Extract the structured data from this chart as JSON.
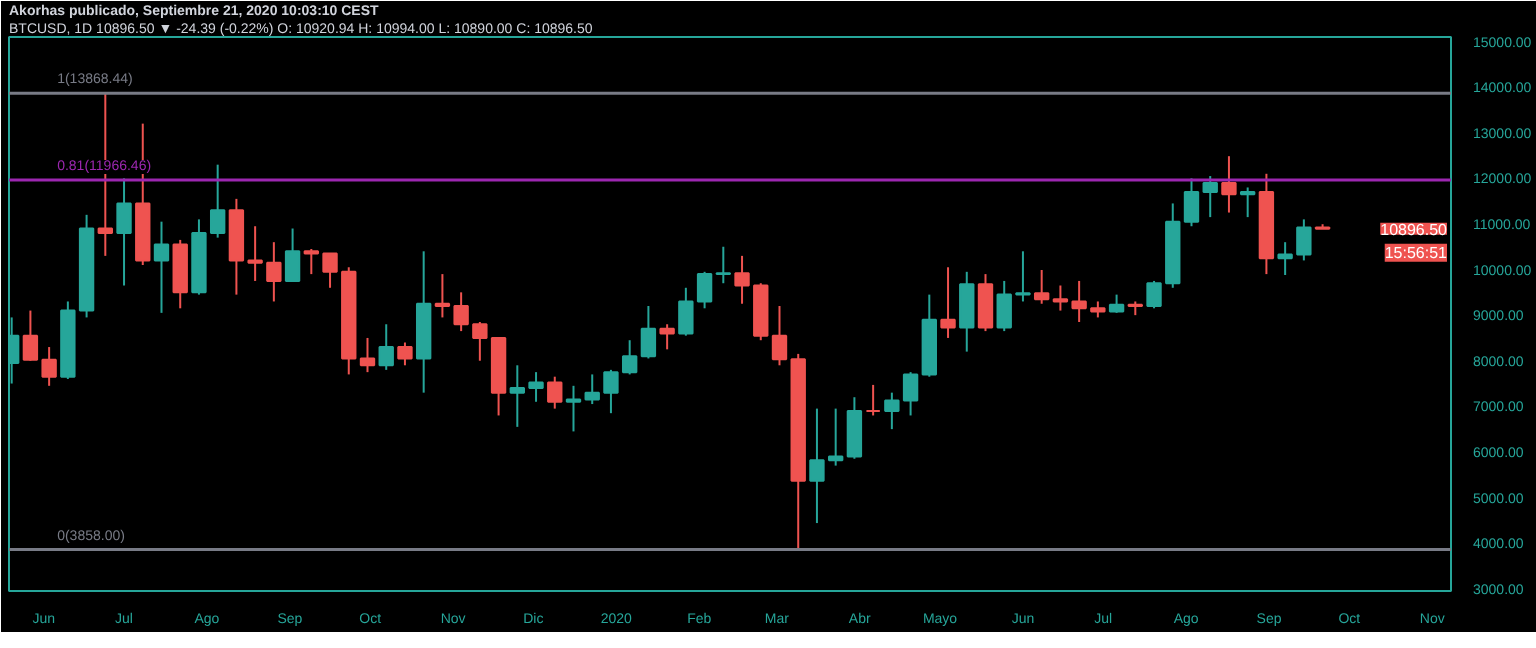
{
  "chart_data": {
    "type": "candlestick",
    "title": "Akorhas publicado, Septiembre 21, 2020 10:03:10 CEST",
    "subtitle": "BTCUSD, 1D 10896.50 ▼ -24.39 (-0.22%) O: 10920.94 H: 10994.00 L: 10890.00 C: 10896.50",
    "x": [
      "2019-05-20",
      "2019-05-27",
      "2019-06-03",
      "2019-06-10",
      "2019-06-17",
      "2019-06-24",
      "2019-07-01",
      "2019-07-08",
      "2019-07-15",
      "2019-07-22",
      "2019-07-29",
      "2019-08-05",
      "2019-08-12",
      "2019-08-19",
      "2019-08-26",
      "2019-09-02",
      "2019-09-09",
      "2019-09-16",
      "2019-09-23",
      "2019-09-30",
      "2019-10-07",
      "2019-10-14",
      "2019-10-21",
      "2019-10-28",
      "2019-11-04",
      "2019-11-11",
      "2019-11-18",
      "2019-11-25",
      "2019-12-02",
      "2019-12-09",
      "2019-12-16",
      "2019-12-23",
      "2019-12-30",
      "2020-01-06",
      "2020-01-13",
      "2020-01-20",
      "2020-01-27",
      "2020-02-03",
      "2020-02-10",
      "2020-02-17",
      "2020-02-24",
      "2020-03-02",
      "2020-03-09",
      "2020-03-16",
      "2020-03-23",
      "2020-03-30",
      "2020-04-06",
      "2020-04-13",
      "2020-04-20",
      "2020-04-27",
      "2020-05-04",
      "2020-05-11",
      "2020-05-18",
      "2020-05-25",
      "2020-06-01",
      "2020-06-08",
      "2020-06-15",
      "2020-06-22",
      "2020-06-29",
      "2020-07-06",
      "2020-07-13",
      "2020-07-20",
      "2020-07-27",
      "2020-08-03",
      "2020-08-10",
      "2020-08-17",
      "2020-08-24",
      "2020-08-31",
      "2020-09-07",
      "2020-09-14",
      "2020-09-21"
    ],
    "ohlc": [
      [
        7950,
        8950,
        7500,
        8550
      ],
      [
        8550,
        9100,
        8000,
        8020
      ],
      [
        8020,
        8300,
        7450,
        7650
      ],
      [
        7650,
        9300,
        7600,
        9100
      ],
      [
        9100,
        11200,
        8950,
        10900
      ],
      [
        10900,
        13868,
        10300,
        10800
      ],
      [
        10800,
        12000,
        9650,
        11450
      ],
      [
        11450,
        13200,
        10100,
        10200
      ],
      [
        10200,
        11050,
        9050,
        10550
      ],
      [
        10550,
        10650,
        9150,
        9500
      ],
      [
        9500,
        11100,
        9450,
        10800
      ],
      [
        10800,
        12300,
        10700,
        11300
      ],
      [
        11300,
        11550,
        9450,
        10200
      ],
      [
        10200,
        10950,
        9750,
        10150
      ],
      [
        10150,
        10600,
        9300,
        9750
      ],
      [
        9750,
        10900,
        9750,
        10400
      ],
      [
        10400,
        10450,
        9900,
        10350
      ],
      [
        10350,
        10350,
        9600,
        9950
      ],
      [
        9950,
        10050,
        7700,
        8050
      ],
      [
        8050,
        8500,
        7750,
        7900
      ],
      [
        7900,
        8800,
        7800,
        8300
      ],
      [
        8300,
        8400,
        7900,
        8050
      ],
      [
        8050,
        10400,
        7300,
        9250
      ],
      [
        9250,
        9900,
        8950,
        9200
      ],
      [
        9200,
        9500,
        8650,
        8800
      ],
      [
        8800,
        8850,
        8000,
        8500
      ],
      [
        8500,
        8500,
        6800,
        7300
      ],
      [
        7300,
        7900,
        6550,
        7400
      ],
      [
        7400,
        7750,
        7100,
        7520
      ],
      [
        7520,
        7650,
        6950,
        7100
      ],
      [
        7100,
        7450,
        6450,
        7150
      ],
      [
        7150,
        7700,
        7050,
        7300
      ],
      [
        7300,
        7800,
        6850,
        7750
      ],
      [
        7750,
        8450,
        7700,
        8100
      ],
      [
        8100,
        9200,
        8050,
        8700
      ],
      [
        8700,
        8800,
        8250,
        8600
      ],
      [
        8600,
        9600,
        8550,
        9300
      ],
      [
        9300,
        9950,
        9150,
        9900
      ],
      [
        9900,
        10500,
        9700,
        9920
      ],
      [
        9920,
        10300,
        9250,
        9650
      ],
      [
        9650,
        9700,
        8450,
        8550
      ],
      [
        8550,
        9200,
        7900,
        8030
      ],
      [
        8030,
        8150,
        3858,
        5370
      ],
      [
        5370,
        6950,
        4440,
        5820
      ],
      [
        5820,
        6950,
        5700,
        5900
      ],
      [
        5900,
        7200,
        5850,
        6900
      ],
      [
        6900,
        7470,
        6800,
        6900
      ],
      [
        6900,
        7300,
        6500,
        7130
      ],
      [
        7130,
        7750,
        6800,
        7700
      ],
      [
        7700,
        9450,
        7650,
        8900
      ],
      [
        8900,
        10050,
        8500,
        8730
      ],
      [
        8730,
        9950,
        8200,
        9680
      ],
      [
        9680,
        9900,
        8650,
        8730
      ],
      [
        8730,
        9750,
        8650,
        9450
      ],
      [
        9450,
        10400,
        9300,
        9480
      ],
      [
        9480,
        9990,
        9250,
        9350
      ],
      [
        9350,
        9650,
        9100,
        9300
      ],
      [
        9300,
        9750,
        8850,
        9150
      ],
      [
        9150,
        9300,
        8950,
        9080
      ],
      [
        9080,
        9450,
        9050,
        9230
      ],
      [
        9230,
        9300,
        9000,
        9200
      ],
      [
        9200,
        9750,
        9150,
        9700
      ],
      [
        9700,
        11450,
        9600,
        11050
      ],
      [
        11050,
        12000,
        10950,
        11700
      ],
      [
        11700,
        12050,
        11150,
        11900
      ],
      [
        11900,
        12486,
        11250,
        11650
      ],
      [
        11650,
        11800,
        11150,
        11700
      ],
      [
        11700,
        12100,
        9900,
        10250
      ],
      [
        10250,
        10600,
        9880,
        10330
      ],
      [
        10330,
        11100,
        10200,
        10920
      ],
      [
        10920,
        10994,
        10890,
        10896.5
      ]
    ],
    "colors": [
      "#26a69a",
      "#ef5350",
      "#ef5350",
      "#26a69a",
      "#26a69a",
      "#ef5350",
      "#26a69a",
      "#ef5350",
      "#26a69a",
      "#ef5350",
      "#26a69a",
      "#26a69a",
      "#ef5350",
      "#ef5350",
      "#ef5350",
      "#26a69a",
      "#ef5350",
      "#ef5350",
      "#ef5350",
      "#ef5350",
      "#26a69a",
      "#ef5350",
      "#26a69a",
      "#ef5350",
      "#ef5350",
      "#ef5350",
      "#ef5350",
      "#26a69a",
      "#26a69a",
      "#ef5350",
      "#26a69a",
      "#26a69a",
      "#26a69a",
      "#26a69a",
      "#26a69a",
      "#ef5350",
      "#26a69a",
      "#26a69a",
      "#26a69a",
      "#ef5350",
      "#ef5350",
      "#ef5350",
      "#ef5350",
      "#26a69a",
      "#26a69a",
      "#26a69a",
      "#ef5350",
      "#26a69a",
      "#26a69a",
      "#26a69a",
      "#ef5350",
      "#26a69a",
      "#ef5350",
      "#26a69a",
      "#26a69a",
      "#ef5350",
      "#ef5350",
      "#ef5350",
      "#ef5350",
      "#26a69a",
      "#ef5350",
      "#26a69a",
      "#26a69a",
      "#26a69a",
      "#26a69a",
      "#ef5350",
      "#26a69a",
      "#ef5350",
      "#26a69a",
      "#26a69a",
      "#ef5350"
    ],
    "xlim": [
      "2019-05-19",
      "2020-11-08"
    ],
    "xticks": [
      {
        "value": "2019-06-01",
        "label": "Jun"
      },
      {
        "value": "2019-07-01",
        "label": "Jul"
      },
      {
        "value": "2019-08-01",
        "label": "Ago"
      },
      {
        "value": "2019-09-01",
        "label": "Sep"
      },
      {
        "value": "2019-10-01",
        "label": "Oct"
      },
      {
        "value": "2019-11-01",
        "label": "Nov"
      },
      {
        "value": "2019-12-01",
        "label": "Dic"
      },
      {
        "value": "2020-01-01",
        "label": "2020"
      },
      {
        "value": "2020-02-01",
        "label": "Feb"
      },
      {
        "value": "2020-03-01",
        "label": "Mar"
      },
      {
        "value": "2020-04-01",
        "label": "Abr"
      },
      {
        "value": "2020-05-01",
        "label": "Mayo"
      },
      {
        "value": "2020-06-01",
        "label": "Jun"
      },
      {
        "value": "2020-07-01",
        "label": "Jul"
      },
      {
        "value": "2020-08-01",
        "label": "Ago"
      },
      {
        "value": "2020-09-01",
        "label": "Sep"
      },
      {
        "value": "2020-10-01",
        "label": "Oct"
      },
      {
        "value": "2020-11-01",
        "label": "Nov"
      }
    ],
    "ylim": [
      2950,
      15100
    ],
    "yticks": [
      {
        "value": 3000,
        "label": "3000.00"
      },
      {
        "value": 4000,
        "label": "4000.00"
      },
      {
        "value": 5000,
        "label": "5000.00"
      },
      {
        "value": 6000,
        "label": "6000.00"
      },
      {
        "value": 7000,
        "label": "7000.00"
      },
      {
        "value": 8000,
        "label": "8000.00"
      },
      {
        "value": 9000,
        "label": "9000.00"
      },
      {
        "value": 10000,
        "label": "10000.00"
      },
      {
        "value": 11000,
        "label": "11000.00"
      },
      {
        "value": 12000,
        "label": "12000.00"
      },
      {
        "value": 13000,
        "label": "13000.00"
      },
      {
        "value": 14000,
        "label": "14000.00"
      },
      {
        "value": 15000,
        "label": "15000.00"
      }
    ],
    "ref_lines": [
      {
        "axis": "y",
        "value": 13868.44,
        "label": "1(13868.44)",
        "color": "#787b86"
      },
      {
        "axis": "y",
        "value": 11966.46,
        "label": "0.81(11966.46)",
        "color": "#9c27b0"
      },
      {
        "axis": "y",
        "value": 3858,
        "label": "0(3858.00)",
        "color": "#787b86"
      }
    ],
    "annotations": [
      "10896.50",
      "15:56:51"
    ],
    "grid": false
  }
}
